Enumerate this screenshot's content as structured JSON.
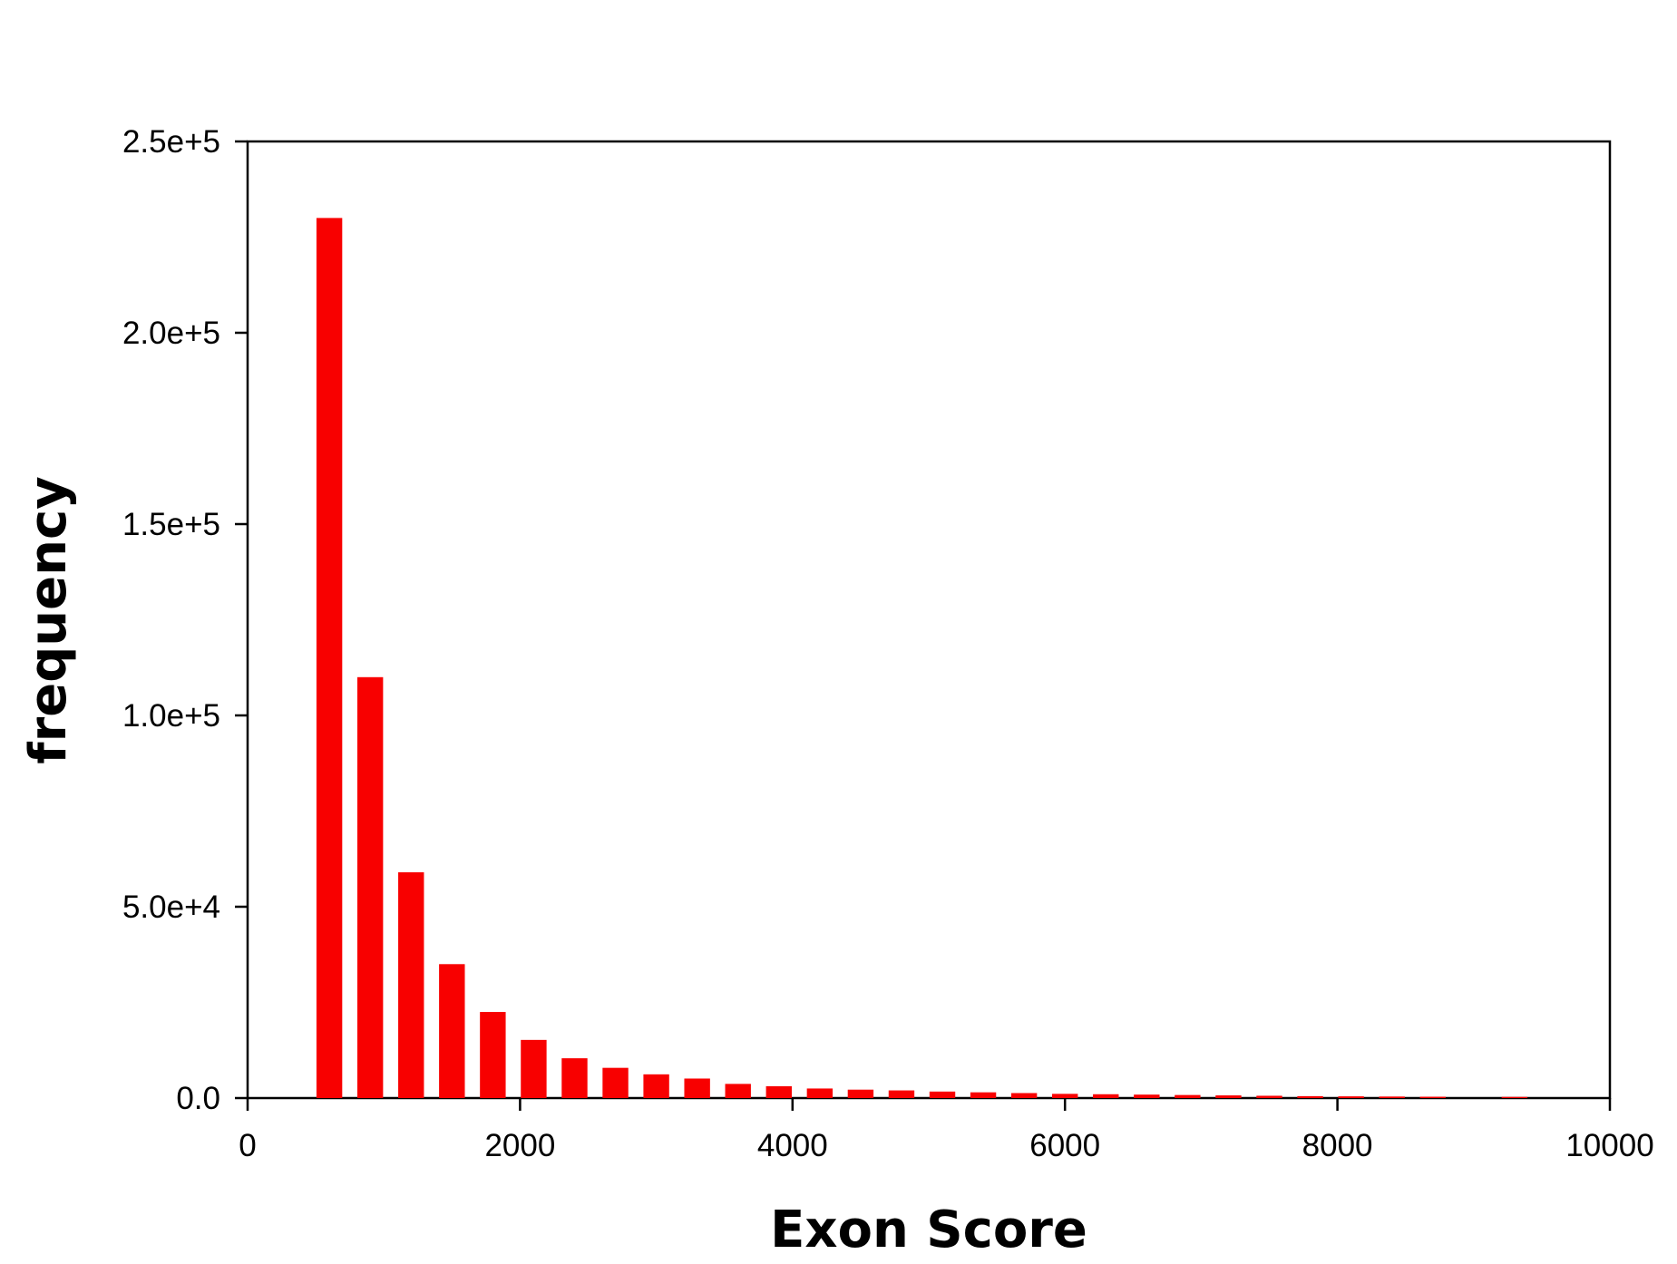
{
  "chart_data": {
    "type": "bar",
    "x_label": "Exon Score",
    "y_label": "frequency",
    "x": [
      600,
      900,
      1200,
      1500,
      1800,
      2100,
      2400,
      2700,
      3000,
      3300,
      3600,
      3900,
      4200,
      4500,
      4800,
      5100,
      5400,
      5700,
      6000,
      6300,
      6600,
      6900,
      7200,
      7500,
      7800,
      8100,
      8400,
      8700,
      9300
    ],
    "values": [
      230000,
      110000,
      59000,
      35000,
      22500,
      15200,
      10400,
      7900,
      6200,
      5100,
      3700,
      3100,
      2500,
      2200,
      2000,
      1700,
      1500,
      1300,
      1100,
      1000,
      900,
      800,
      700,
      600,
      500,
      450,
      400,
      350,
      300
    ],
    "color": "#f80000",
    "xlim": [
      0,
      10000
    ],
    "xticks": [
      0,
      2000,
      4000,
      6000,
      8000,
      10000
    ],
    "ylim": [
      0,
      250000
    ],
    "yticks": [
      {
        "value": 0,
        "label": "0.0"
      },
      {
        "value": 50000,
        "label": "5.0e+4"
      },
      {
        "value": 100000,
        "label": "1.0e+5"
      },
      {
        "value": 150000,
        "label": "1.5e+5"
      },
      {
        "value": 200000,
        "label": "2.0e+5"
      },
      {
        "value": 250000,
        "label": "2.5e+5"
      }
    ],
    "grid": false
  }
}
